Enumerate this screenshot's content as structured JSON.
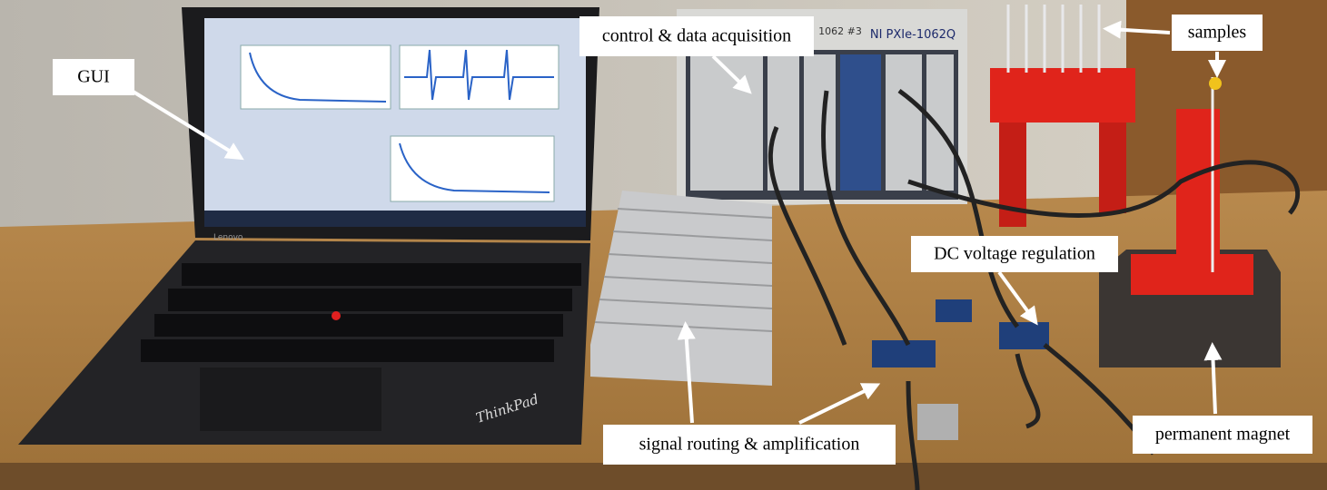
{
  "annotations": {
    "gui": "GUI",
    "control": "control & data acquisition",
    "samples": "samples",
    "dc": "DC voltage regulation",
    "signal": "signal routing & amplification",
    "magnet": "permanent magnet"
  },
  "device_text": {
    "chassis_model": "NI PXIe-1062Q",
    "chassis_id": "1062 #3",
    "laptop_brand": "ThinkPad",
    "laptop_maker": "Lenovo"
  }
}
